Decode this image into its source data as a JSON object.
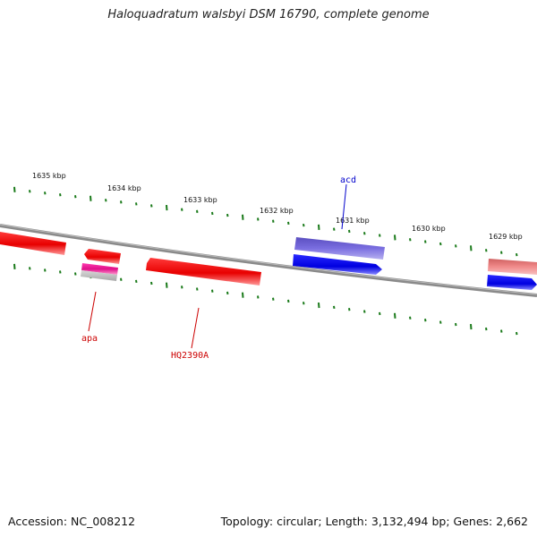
{
  "title": "Haloquadratum walsbyi DSM 16790, complete genome",
  "footer": {
    "accession": "Accession: NC_008212",
    "summary": "Topology: circular; Length: 3,132,494 bp; Genes: 2,662"
  },
  "colors": {
    "backbone": "#7a7a7a",
    "tick": "#1a7a1a",
    "forward_gene": "#ee1111",
    "reverse_gene": "#0000ee",
    "gene_label_red": "#cc0000",
    "gene_label_blue": "#0000cc"
  },
  "scale": {
    "unit": "kbp",
    "tick_labels": [
      "1635 kbp",
      "1634 kbp",
      "1633 kbp",
      "1632 kbp",
      "1631 kbp",
      "1630 kbp",
      "1629 kbp"
    ]
  },
  "genes": [
    {
      "label": "apa",
      "color_key": "gene_label_red"
    },
    {
      "label": "HQ2390A",
      "color_key": "gene_label_red"
    },
    {
      "label": "acd",
      "color_key": "gene_label_blue"
    }
  ]
}
